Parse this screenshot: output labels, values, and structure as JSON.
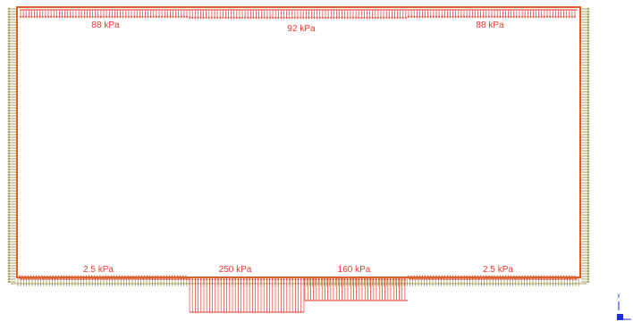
{
  "model": {
    "top_loads": [
      {
        "id": "top-left",
        "label": "88 kPa"
      },
      {
        "id": "top-middle",
        "label": "92 kPa"
      },
      {
        "id": "top-right",
        "label": "88 kPa"
      }
    ],
    "bottom_loads": [
      {
        "id": "bottom-left",
        "label": "2.5 kPa"
      },
      {
        "id": "bottom-mid-left",
        "label": "250 kPa"
      },
      {
        "id": "bottom-mid-right",
        "label": "160 kPa"
      },
      {
        "id": "bottom-right",
        "label": "2.5 kPa"
      }
    ],
    "colors": {
      "boundary": "#d9622b",
      "pressure": "#e8392f",
      "support": "#8a8a3a",
      "axis": "#1a2fd6"
    },
    "axis_triad": {
      "label": "y"
    }
  }
}
